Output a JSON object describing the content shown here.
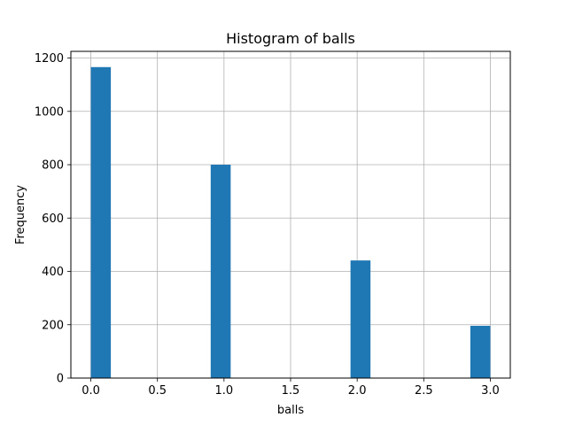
{
  "chart_data": {
    "type": "bar",
    "title": "Histogram of balls",
    "xlabel": "balls",
    "ylabel": "Frequency",
    "bins": [
      {
        "x0": 0.0,
        "x1": 0.15,
        "value": 1166
      },
      {
        "x0": 0.9,
        "x1": 1.05,
        "value": 800
      },
      {
        "x0": 1.95,
        "x1": 2.1,
        "value": 441
      },
      {
        "x0": 2.85,
        "x1": 3.0,
        "value": 196
      }
    ],
    "xlim": [
      -0.15,
      3.15
    ],
    "ylim": [
      0,
      1225
    ],
    "xticks": [
      0.0,
      0.5,
      1.0,
      1.5,
      2.0,
      2.5,
      3.0
    ],
    "xtick_labels": [
      "0.0",
      "0.5",
      "1.0",
      "1.5",
      "2.0",
      "2.5",
      "3.0"
    ],
    "yticks": [
      0,
      200,
      400,
      600,
      800,
      1000,
      1200
    ],
    "ytick_labels": [
      "0",
      "200",
      "400",
      "600",
      "800",
      "1000",
      "1200"
    ],
    "grid": true,
    "bar_color": "#1f77b4",
    "grid_color": "#b0b0b0"
  }
}
